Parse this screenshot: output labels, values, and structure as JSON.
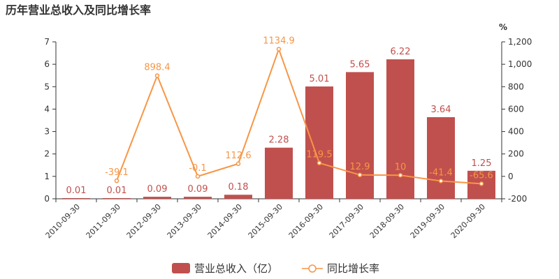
{
  "chart_data": {
    "type": "bar",
    "title": "历年营业总收入及同比增长率",
    "categories": [
      "2010-09-30",
      "2011-09-30",
      "2012-09-30",
      "2013-09-30",
      "2014-09-30",
      "2015-09-30",
      "2016-09-30",
      "2017-09-30",
      "2018-09-30",
      "2019-09-30",
      "2020-09-30"
    ],
    "series": [
      {
        "name": "营业总收入（亿）",
        "type": "bar",
        "axis": "left",
        "color": "#c0504d",
        "values": [
          0.01,
          0.01,
          0.09,
          0.09,
          0.18,
          2.28,
          5.01,
          5.65,
          6.22,
          3.64,
          1.25
        ],
        "labels": [
          "0.01",
          "0.01",
          "0.09",
          "0.09",
          "0.18",
          "2.28",
          "5.01",
          "5.65",
          "6.22",
          "3.64",
          "1.25"
        ]
      },
      {
        "name": "同比增长率",
        "type": "line",
        "axis": "right",
        "color": "#f79646",
        "values": [
          null,
          -39.1,
          898.4,
          -0.1,
          112.6,
          1134.9,
          119.5,
          12.9,
          10,
          -41.4,
          -65.6
        ],
        "labels": [
          "",
          "-39.1",
          "898.4",
          "-0.1",
          "112.6",
          "1134.9",
          "119.5",
          "12.9",
          "10",
          "-41.4",
          "-65.6"
        ]
      }
    ],
    "y_left": {
      "min": 0,
      "max": 7,
      "ticks": [
        "0",
        "1",
        "2",
        "3",
        "4",
        "5",
        "6",
        "7"
      ]
    },
    "y_right": {
      "min": -200,
      "max": 1200,
      "unit": "%",
      "ticks": [
        "-200",
        "0",
        "200",
        "400",
        "600",
        "800",
        "1,000",
        "1,200"
      ]
    },
    "legend_position": "bottom",
    "grid": false
  }
}
